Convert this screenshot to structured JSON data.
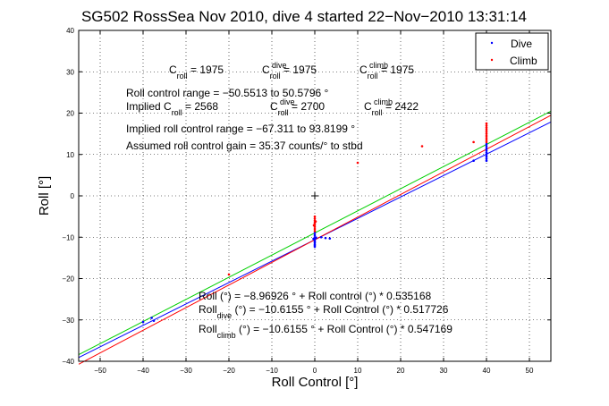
{
  "chart_data": {
    "type": "scatter",
    "title": "SG502 RossSea Nov 2010, dive 4 started 22−Nov−2010 13:31:14",
    "xlabel": "Roll Control [°]",
    "ylabel": "Roll [°]",
    "xlim": [
      -55,
      55
    ],
    "ylim": [
      -40,
      40
    ],
    "x_ticks": [
      -50,
      -40,
      -30,
      -20,
      -10,
      0,
      10,
      20,
      30,
      40,
      50
    ],
    "y_ticks": [
      -40,
      -30,
      -20,
      -10,
      0,
      10,
      20,
      30,
      40
    ],
    "x_tick_labels": [
      "−50",
      "−40",
      "−30",
      "−20",
      "−10",
      "0",
      "10",
      "20",
      "30",
      "40",
      "50"
    ],
    "y_tick_labels": [
      "−40",
      "−30",
      "−20",
      "−10",
      "0",
      "10",
      "20",
      "30",
      "40"
    ],
    "grid": true,
    "legend_position": "top-right",
    "legend": [
      {
        "label": "Dive",
        "color": "#0000ff"
      },
      {
        "label": "Climb",
        "color": "#ff0000"
      }
    ],
    "series": [
      {
        "name": "Dive",
        "color": "#0000ff",
        "points": [
          [
            0,
            -9.0
          ],
          [
            0,
            -9.5
          ],
          [
            0,
            -10.0
          ],
          [
            0,
            -10.3
          ],
          [
            0,
            -10.6
          ],
          [
            0,
            -11.0
          ],
          [
            0,
            -11.3
          ],
          [
            0,
            -11.7
          ],
          [
            0,
            -12.0
          ],
          [
            0,
            -12.3
          ],
          [
            0.3,
            -10.1
          ],
          [
            -0.3,
            -10.4
          ],
          [
            1.5,
            -10.0
          ],
          [
            2.5,
            -10.2
          ],
          [
            3.5,
            -10.3
          ],
          [
            40,
            8.5
          ],
          [
            40,
            9.0
          ],
          [
            40,
            9.5
          ],
          [
            40,
            10.0
          ],
          [
            40,
            10.5
          ],
          [
            40,
            11.0
          ],
          [
            40,
            11.5
          ],
          [
            40,
            12.0
          ],
          [
            40,
            12.5
          ],
          [
            37,
            8.5
          ],
          [
            -40,
            -30.5
          ],
          [
            -38,
            -29.5
          ],
          [
            -37.5,
            -30.2
          ]
        ]
      },
      {
        "name": "Climb",
        "color": "#ff0000",
        "points": [
          [
            0,
            -5.0
          ],
          [
            0,
            -5.5
          ],
          [
            0,
            -6.0
          ],
          [
            0,
            -6.5
          ],
          [
            0,
            -7.0
          ],
          [
            0,
            -7.5
          ],
          [
            0,
            -8.0
          ],
          [
            0,
            -8.5
          ],
          [
            0.2,
            -6.2
          ],
          [
            -0.2,
            -7.1
          ],
          [
            40,
            13.0
          ],
          [
            40,
            13.5
          ],
          [
            40,
            14.0
          ],
          [
            40,
            14.5
          ],
          [
            40,
            15.0
          ],
          [
            40,
            15.5
          ],
          [
            40,
            16.0
          ],
          [
            40,
            16.5
          ],
          [
            40,
            17.0
          ],
          [
            40,
            17.5
          ],
          [
            37,
            13.0
          ],
          [
            10,
            8.0
          ],
          [
            25,
            12.0
          ],
          [
            -20,
            -19.0
          ]
        ]
      }
    ],
    "center_marker": {
      "x": 0,
      "y": 0
    },
    "fit_lines": [
      {
        "color": "#00d000",
        "intercept": -8.96926,
        "slope": 0.535168
      },
      {
        "color": "#0000ff",
        "intercept": -10.6155,
        "slope": 0.517726
      },
      {
        "color": "#ff0000",
        "intercept": -10.6155,
        "slope": 0.547169
      }
    ],
    "annotations": {
      "croll": {
        "C": "C",
        "sub": "roll",
        "val": " = 1975"
      },
      "croll_dive": {
        "C": "C",
        "sup": "dive",
        "sub": "roll",
        "val": " = 1975"
      },
      "croll_climb": {
        "C": "C",
        "sup": "climb",
        "sub": "roll",
        "val": " = 1975"
      },
      "range": "Roll control range = −50.5513 to 50.5796 °",
      "implied_label": "Implied C",
      "implied_sub": "roll",
      "implied_val": " = 2568",
      "implied_dive": {
        "C": "C",
        "sup": "dive",
        "sub": "roll",
        "val": " = 2700"
      },
      "implied_climb": {
        "C": "C",
        "sup": "climb",
        "sub": "roll",
        "val": " = 2422"
      },
      "implied_range": "Implied roll control range = −67.311 to 93.8199 °",
      "gain": "Assumed roll control gain = 35.37 counts/° to stbd",
      "eq1": "Roll (°) = −8.96926 ° + Roll control (°) * 0.535168",
      "eq2_pre": "Roll",
      "eq2_sub": "dive",
      "eq2_post": " (°) = −10.6155 ° + Roll Control (°) * 0.517726",
      "eq3_pre": "Roll",
      "eq3_sub": "climb",
      "eq3_post": " (°) = −10.6155 ° + Roll Control (°) * 0.547169"
    }
  }
}
